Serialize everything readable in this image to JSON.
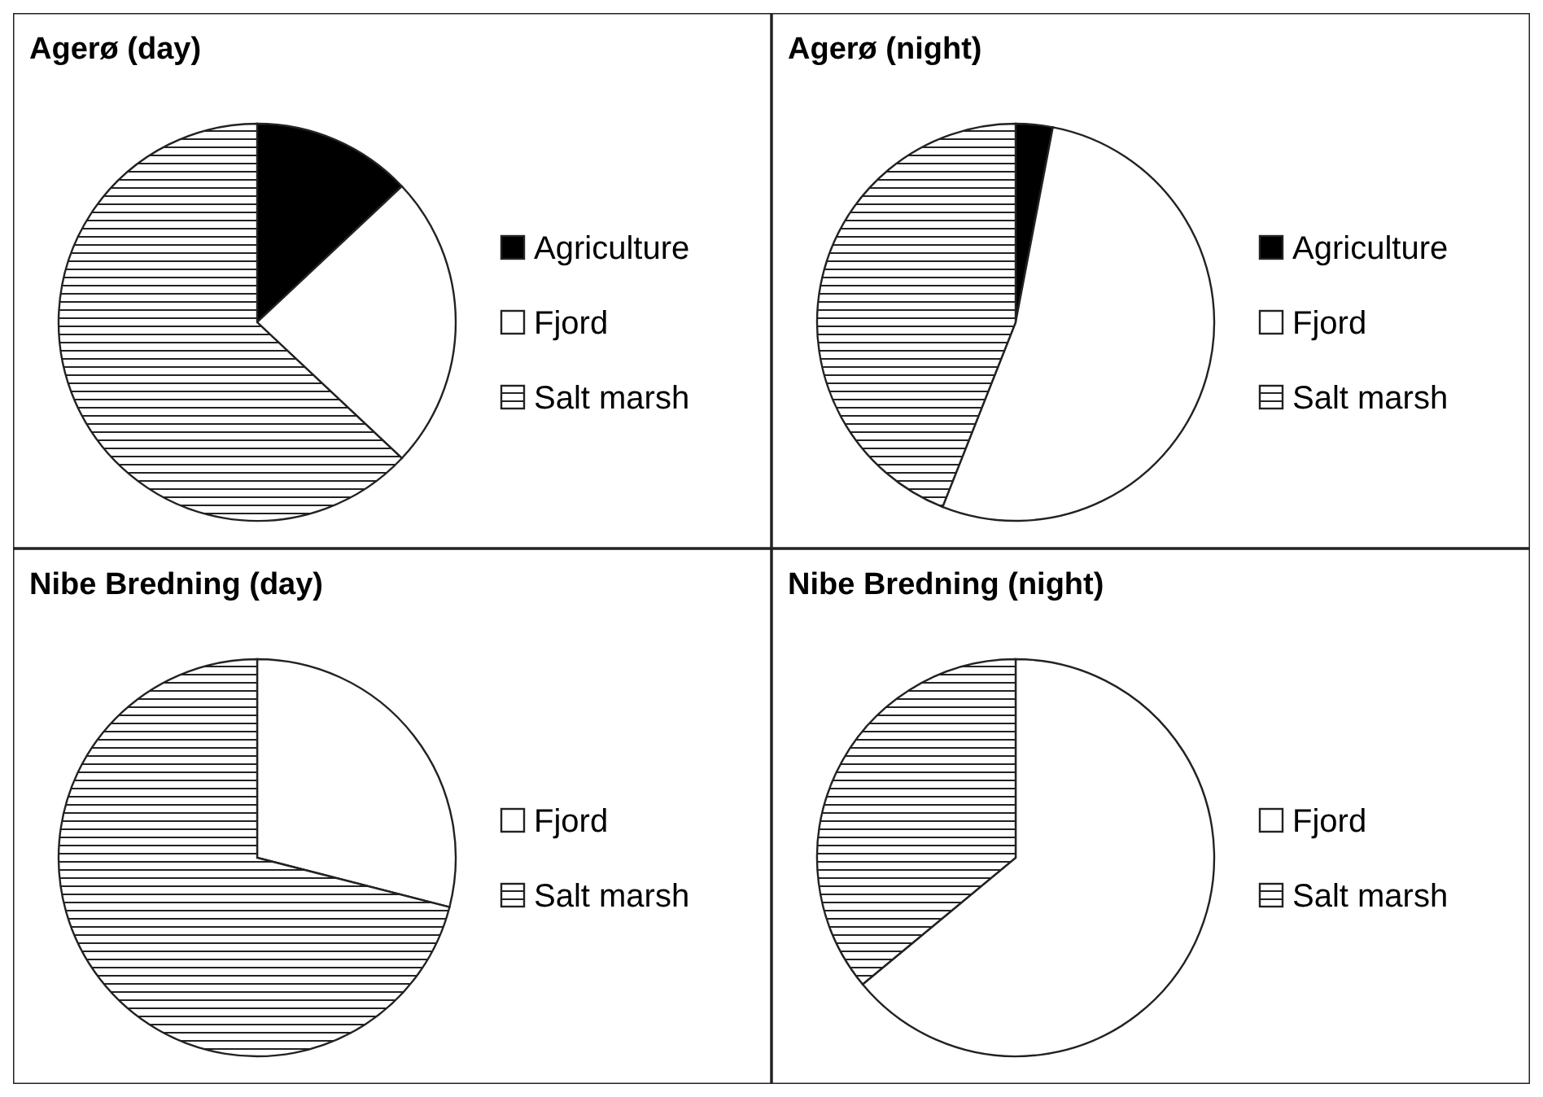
{
  "chart_data": [
    {
      "type": "pie",
      "title": "Agerø (day)",
      "categories": [
        "Agriculture",
        "Fjord",
        "Salt marsh"
      ],
      "values": [
        13,
        24,
        63
      ],
      "colors": [
        "#000000",
        "#ffffff",
        "#222222"
      ],
      "legend": "right"
    },
    {
      "type": "pie",
      "title": "Agerø (night)",
      "categories": [
        "Agriculture",
        "Fjord",
        "Salt marsh"
      ],
      "values": [
        3,
        53,
        44
      ],
      "colors": [
        "#000000",
        "#ffffff",
        "#222222"
      ],
      "legend": "right"
    },
    {
      "type": "pie",
      "title": "Nibe Bredning (day)",
      "categories": [
        "Fjord",
        "Salt marsh"
      ],
      "values": [
        29,
        71
      ],
      "colors": [
        "#ffffff",
        "#222222"
      ],
      "legend": "right"
    },
    {
      "type": "pie",
      "title": "Nibe Bredning (night)",
      "categories": [
        "Fjord",
        "Salt marsh"
      ],
      "values": [
        64,
        36
      ],
      "colors": [
        "#ffffff",
        "#222222"
      ],
      "legend": "right"
    }
  ]
}
